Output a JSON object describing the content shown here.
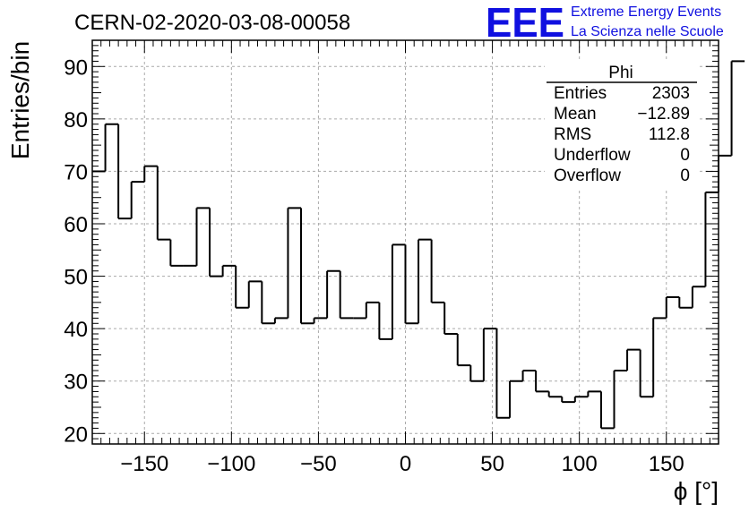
{
  "header": {
    "run_title": "CERN-02-2020-03-08-00058",
    "logo_mark": "EEE",
    "logo_line1": "Extreme Energy Events",
    "logo_line2": "La Scienza nelle Scuole"
  },
  "stats_box": {
    "title": "Phi",
    "rows": [
      {
        "label": "Entries",
        "value": "2303"
      },
      {
        "label": "Mean",
        "value": "−12.89"
      },
      {
        "label": "RMS",
        "value": "112.8"
      },
      {
        "label": "Underflow",
        "value": "0"
      },
      {
        "label": "Overflow",
        "value": "0"
      }
    ]
  },
  "chart_data": {
    "type": "bar",
    "style": "step-histogram",
    "title": "CERN-02-2020-03-08-00058",
    "xlabel": "ϕ [°]",
    "ylabel": "Entries/bin",
    "xlim": [
      -180,
      180
    ],
    "ylim": [
      18,
      95
    ],
    "bin_edges_start": -180,
    "bin_width": 7.5,
    "values": [
      70,
      79,
      61,
      68,
      71,
      57,
      52,
      52,
      63,
      50,
      52,
      44,
      49,
      41,
      42,
      63,
      41,
      42,
      51,
      42,
      42,
      45,
      38,
      56,
      41,
      57,
      45,
      39,
      33,
      30,
      40,
      23,
      30,
      32,
      28,
      27,
      26,
      27,
      28,
      21,
      32,
      36,
      27,
      42,
      46,
      44,
      48,
      66,
      73,
      91
    ],
    "x_ticks": [
      -150,
      -100,
      -50,
      0,
      50,
      100,
      150
    ],
    "x_tick_labels": [
      "−150",
      "−100",
      "−50",
      "0",
      "50",
      "100",
      "150"
    ],
    "y_ticks": [
      20,
      30,
      40,
      50,
      60,
      70,
      80,
      90
    ],
    "y_tick_labels": [
      "20",
      "30",
      "40",
      "50",
      "60",
      "70",
      "80",
      "90"
    ],
    "grid": true,
    "line_color": "#000000",
    "grid_color": "#aaaaaa"
  }
}
